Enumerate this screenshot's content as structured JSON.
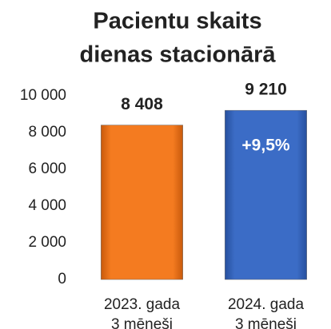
{
  "chart_data": {
    "type": "bar",
    "title": [
      "Pacientu skaits",
      "dienas stacionārā"
    ],
    "categories": [
      [
        "2023. gada",
        "3 mēneši"
      ],
      [
        "2024. gada",
        "3 mēneši"
      ]
    ],
    "values": [
      8408,
      9210
    ],
    "value_labels": [
      "8 408",
      "9 210"
    ],
    "colors": [
      "#f47b20",
      "#3b6cc6"
    ],
    "annotations": [
      {
        "text": "+9,5%",
        "series_index": 1
      }
    ],
    "ylim": [
      0,
      10000
    ],
    "yticks": [
      0,
      {
        "value": 2000,
        "label": "2 000"
      },
      {
        "value": 4000,
        "label": "4 000"
      },
      {
        "value": 6000,
        "label": "6 000"
      },
      {
        "value": 8000,
        "label": "8 000"
      },
      {
        "value": 10000,
        "label": "10 000"
      }
    ],
    "grid": false
  }
}
